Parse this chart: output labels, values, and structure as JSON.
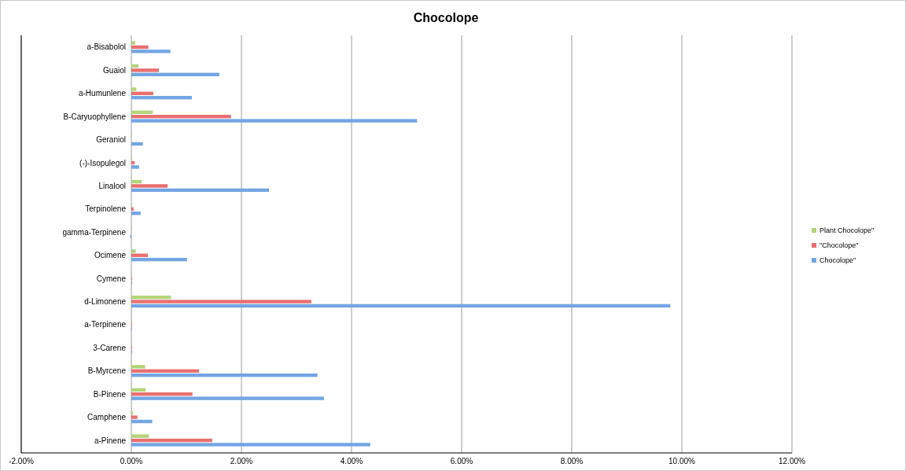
{
  "chart_data": {
    "type": "bar",
    "orientation": "horizontal",
    "title": "Chocolope",
    "categories": [
      "a-Bisabolol",
      "Guaiol",
      "a-Humunlene",
      "B-Caryuophyllene",
      "Geraniol",
      "(-)-Isopulegol",
      "Linalool",
      "Terpinolene",
      "gamma-Terpinene",
      "Ocimene",
      "Cymene",
      "d-Limonene",
      "a-Terpinene",
      "3-Carene",
      "B-Myrcene",
      "B-Pinene",
      "Camphene",
      "a-Pinene"
    ],
    "series": [
      {
        "name": "Plant Chocolope\"",
        "color": "#b3d47a",
        "values": [
          0.07,
          0.13,
          0.09,
          0.39,
          0.01,
          0.01,
          0.19,
          0.01,
          0.01,
          0.08,
          0.01,
          0.72,
          0.01,
          0.01,
          0.25,
          0.26,
          0.03,
          0.32
        ]
      },
      {
        "name": "\"Chocolope\"",
        "color": "#e8706f",
        "values": [
          0.31,
          0.5,
          0.4,
          1.81,
          0,
          0.06,
          0.66,
          0.04,
          0,
          0.3,
          0.01,
          3.27,
          0.01,
          0.01,
          1.23,
          1.11,
          0.11,
          1.47
        ]
      },
      {
        "name": "Chocolope\"",
        "color": "#74a5e3",
        "values": [
          0.71,
          1.6,
          1.1,
          5.19,
          0.21,
          0.14,
          2.5,
          0.17,
          -0.02,
          1.01,
          0.01,
          9.79,
          0.01,
          0.01,
          3.38,
          3.5,
          0.38,
          4.34
        ]
      }
    ],
    "xlim": [
      -2,
      12
    ],
    "xticks": [
      {
        "value": -2,
        "label": "-2.00%"
      },
      {
        "value": 0,
        "label": "0.00%"
      },
      {
        "value": 2,
        "label": "2.00%"
      },
      {
        "value": 4,
        "label": "4.00%"
      },
      {
        "value": 6,
        "label": "6.00%"
      },
      {
        "value": 8,
        "label": "8.00%"
      },
      {
        "value": 10,
        "label": "10.00%"
      },
      {
        "value": 12,
        "label": "12.00%"
      }
    ],
    "grid": "x",
    "legend": "right"
  }
}
